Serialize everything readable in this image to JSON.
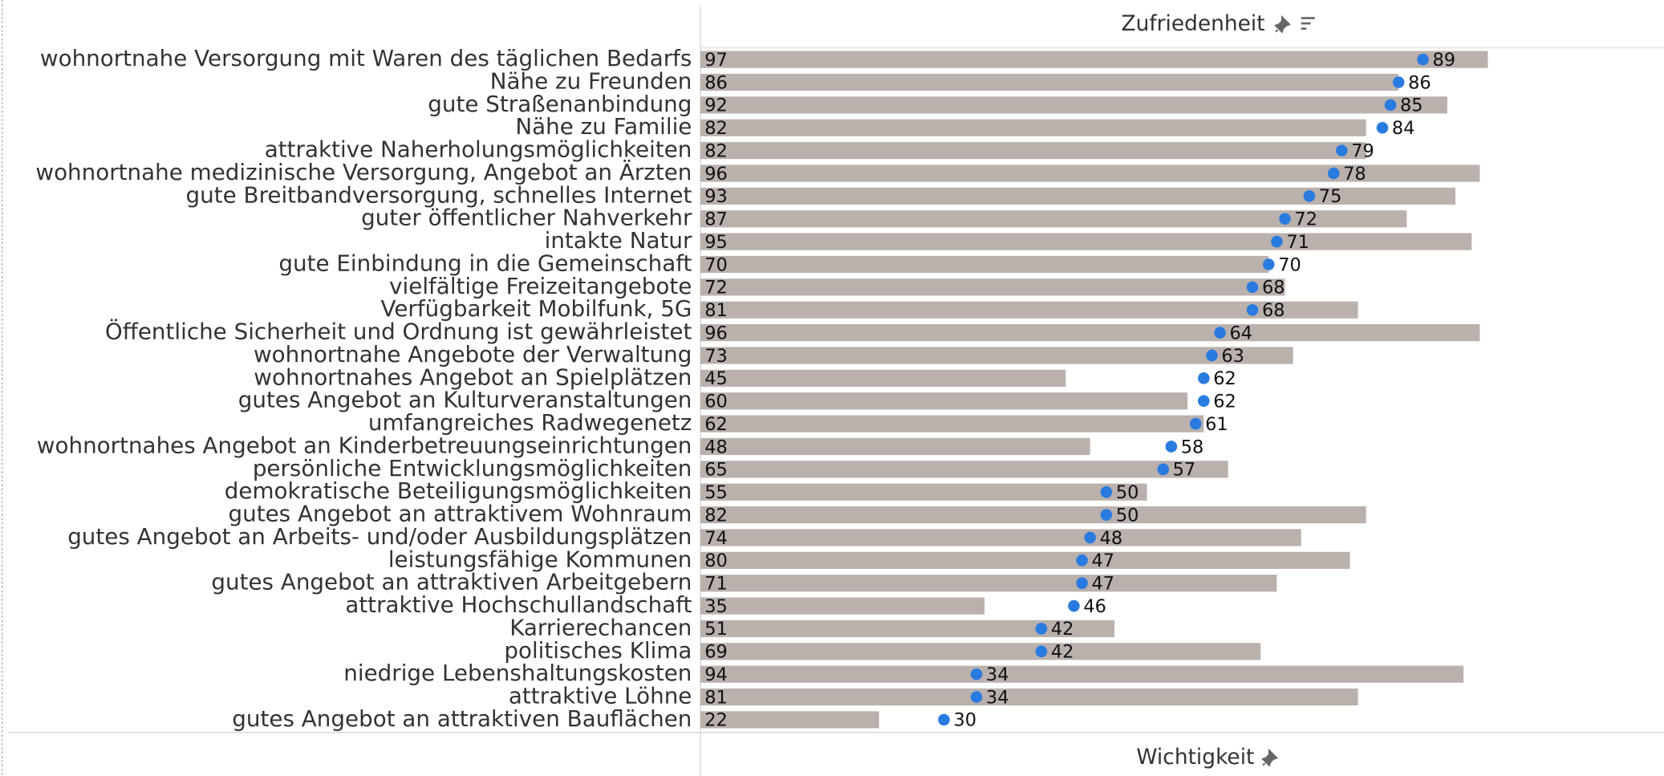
{
  "chart_data": {
    "type": "bar",
    "categories": [
      "wohnortnahe Versorgung mit Waren des täglichen Bedarfs",
      "Nähe zu Freunden",
      "gute Straßenanbindung",
      "Nähe zu Familie",
      "attraktive Naherholungsmöglichkeiten",
      "wohnortnahe medizinische Versorgung, Angebot an Ärzten",
      "gute Breitbandversorgung, schnelles Internet",
      "guter öffentlicher Nahverkehr",
      "intakte Natur",
      "gute Einbindung in die Gemeinschaft",
      "vielfältige Freizeitangebote",
      "Verfügbarkeit Mobilfunk, 5G",
      "Öffentliche Sicherheit und Ordnung ist gewährleistet",
      "wohnortnahe Angebote der Verwaltung",
      "wohnortnahes Angebot an Spielplätzen",
      "gutes Angebot an Kulturveranstaltungen",
      "umfangreiches Radwegenetz",
      "wohnortnahes Angebot an Kinderbetreuungseinrichtungen",
      "persönliche Entwicklungsmöglichkeiten",
      "demokratische Beteiligungsmöglichkeiten",
      "gutes Angebot an attraktivem Wohnraum",
      "gutes Angebot an Arbeits- und/oder Ausbildungsplätzen",
      "leistungsfähige Kommunen",
      "gutes Angebot an attraktiven Arbeitgebern",
      "attraktive Hochschullandschaft",
      "Karrierechancen",
      "politisches Klima",
      "niedrige Lebenshaltungskosten",
      "attraktive Löhne",
      "gutes Angebot an attraktiven Bauflächen"
    ],
    "series": [
      {
        "name": "Wichtigkeit",
        "mark": "bar",
        "color": "#bab0ac",
        "values": [
          97,
          86,
          92,
          82,
          82,
          96,
          93,
          87,
          95,
          70,
          72,
          81,
          96,
          73,
          45,
          60,
          62,
          48,
          65,
          55,
          82,
          74,
          80,
          71,
          35,
          51,
          69,
          94,
          81,
          22
        ]
      },
      {
        "name": "Zufriedenheit",
        "mark": "dot",
        "color": "#2a7be0",
        "values": [
          89,
          86,
          85,
          84,
          79,
          78,
          75,
          72,
          71,
          70,
          68,
          68,
          64,
          63,
          62,
          62,
          61,
          58,
          57,
          50,
          50,
          48,
          47,
          47,
          46,
          42,
          42,
          34,
          34,
          30
        ]
      }
    ],
    "xlim": [
      0,
      100
    ]
  }
}
